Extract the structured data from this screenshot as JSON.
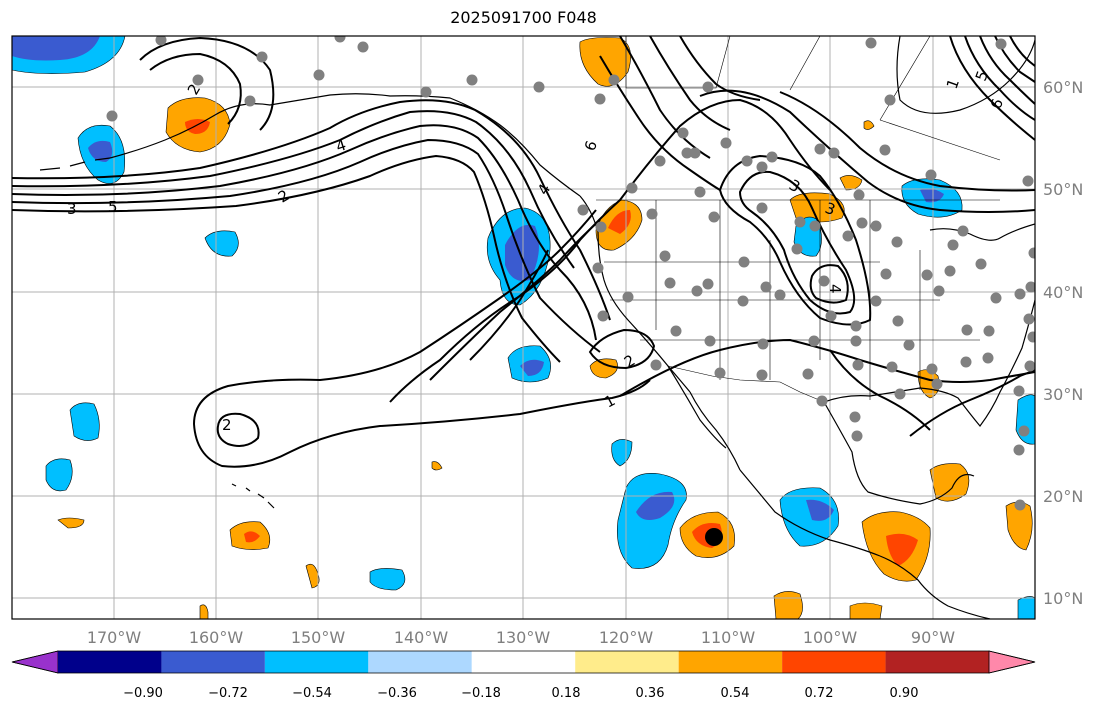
{
  "title": "2025091700 F048",
  "map": {
    "lon_range": [
      -180,
      -80
    ],
    "lat_range": [
      8,
      65
    ],
    "lon_ticks": [
      "170°W",
      "160°W",
      "150°W",
      "140°W",
      "130°W",
      "120°W",
      "110°W",
      "100°W",
      "90°W"
    ],
    "lat_ticks": [
      "60°N",
      "50°N",
      "40°N",
      "30°N",
      "20°N",
      "10°N"
    ],
    "grid": true,
    "marker": {
      "lon": -111,
      "lat": 16,
      "color": "#000000"
    }
  },
  "contour_labels": [
    "1",
    "2",
    "2",
    "2",
    "3",
    "3",
    "4",
    "4",
    "5",
    "6",
    "1",
    "2",
    "3",
    "4",
    "5",
    "6"
  ],
  "colorbar": {
    "tick_labels": [
      "−0.90",
      "−0.72",
      "−0.54",
      "−0.36",
      "−0.18",
      "0.18",
      "0.36",
      "0.54",
      "0.72",
      "0.90"
    ],
    "colors": [
      "#9932cc",
      "#00008b",
      "#3a5bd0",
      "#00bfff",
      "#add8ff",
      "#ffffff",
      "#ffec8b",
      "#ffa500",
      "#ff4500",
      "#b22222",
      "#ff88aa"
    ]
  },
  "colors": {
    "grid": "#b0b0b0",
    "station": "#808080",
    "contour": "#000000"
  }
}
